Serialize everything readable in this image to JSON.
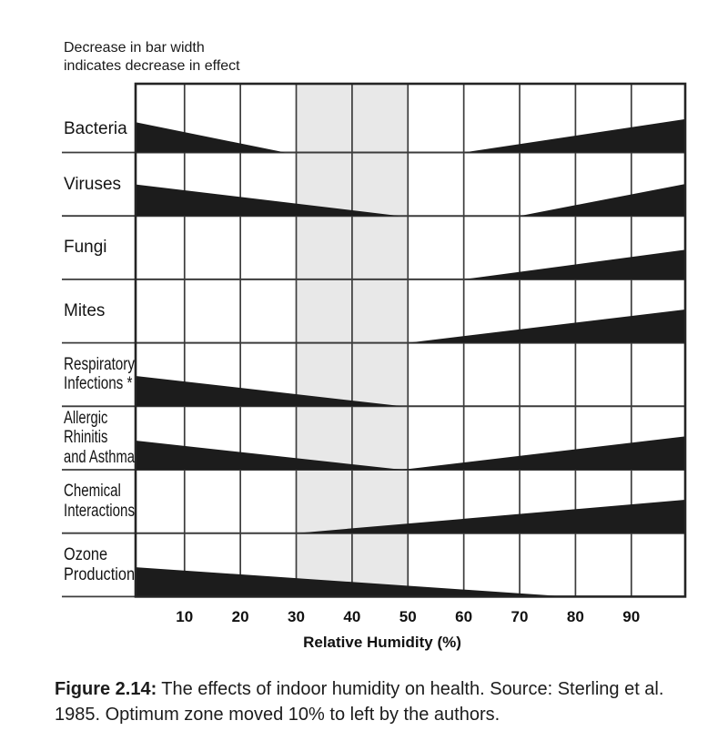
{
  "note": {
    "line1": "Decrease in bar width",
    "line2": "indicates decrease in effect"
  },
  "caption": {
    "figure_label": "Figure 2.14:",
    "line1_rest": "The effects of indoor humidity on health. Source: Sterling et al.",
    "line2": "1985. Optimum zone moved 10% to left by the authors."
  },
  "chart_data": {
    "type": "area",
    "xlabel": "Relative Humidity (%)",
    "x_range": [
      0,
      100
    ],
    "x_ticks": [
      10,
      20,
      30,
      40,
      50,
      60,
      70,
      80,
      90
    ],
    "grid": "on",
    "optimum_zone": {
      "from_pct": 30,
      "to_pct": 50
    },
    "height_units": "fraction of row height",
    "rows": [
      {
        "label": [
          "Bacteria"
        ],
        "wedges": [
          {
            "from_pct": 0,
            "to_pct": 28,
            "start_height": 0.5,
            "end_height": 0
          },
          {
            "from_pct": 60,
            "to_pct": 100,
            "start_height": 0,
            "end_height": 0.53
          }
        ]
      },
      {
        "label": [
          "Viruses"
        ],
        "wedges": [
          {
            "from_pct": 0,
            "to_pct": 48.5,
            "start_height": 0.51,
            "end_height": 0
          },
          {
            "from_pct": 70,
            "to_pct": 100,
            "start_height": 0,
            "end_height": 0.51
          }
        ]
      },
      {
        "label": [
          "Fungi"
        ],
        "wedges": [
          {
            "from_pct": 60,
            "to_pct": 100,
            "start_height": 0,
            "end_height": 0.47
          }
        ]
      },
      {
        "label": [
          "Mites"
        ],
        "wedges": [
          {
            "from_pct": 50,
            "to_pct": 100,
            "start_height": 0,
            "end_height": 0.53
          }
        ]
      },
      {
        "label": [
          "Respiratory",
          "Infections *"
        ],
        "wedges": [
          {
            "from_pct": 0,
            "to_pct": 49,
            "start_height": 0.49,
            "end_height": 0
          }
        ]
      },
      {
        "label": [
          "Allergic",
          "Rhinitis",
          "and Asthma"
        ],
        "wedges": [
          {
            "from_pct": 0,
            "to_pct": 49,
            "start_height": 0.47,
            "end_height": 0
          },
          {
            "from_pct": 49,
            "to_pct": 100,
            "start_height": 0,
            "end_height": 0.53
          }
        ]
      },
      {
        "label": [
          "Chemical",
          "Interactions"
        ],
        "wedges": [
          {
            "from_pct": 30,
            "to_pct": 100,
            "start_height": 0,
            "end_height": 0.53
          }
        ]
      },
      {
        "label": [
          "Ozone",
          "Production"
        ],
        "wedges": [
          {
            "from_pct": 0,
            "to_pct": 78.5,
            "start_height": 0.47,
            "end_height": 0
          }
        ]
      }
    ],
    "colors": {
      "wedge": "#1c1c1c",
      "grid": "#3c3c3c",
      "border": "#242424",
      "optimum_zone_fill": "#e8e8e8",
      "text": "#111111"
    }
  }
}
